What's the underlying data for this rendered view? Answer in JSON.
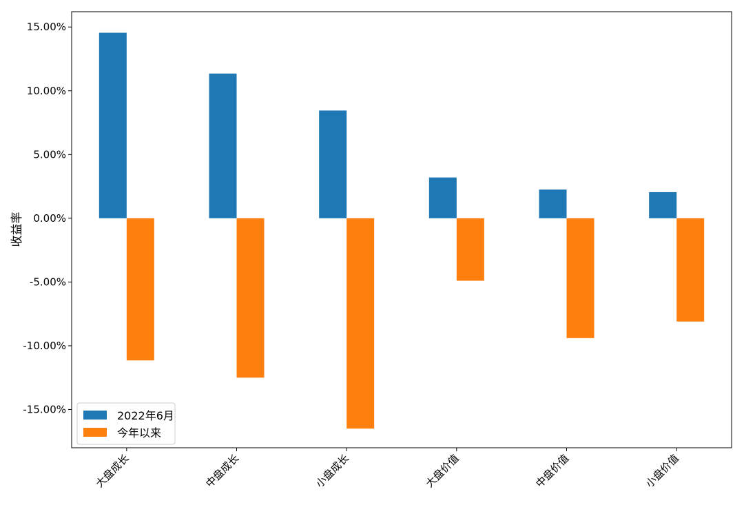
{
  "chart_data": {
    "type": "bar",
    "title": "",
    "xlabel": "",
    "ylabel": "收益率",
    "categories": [
      "大盘成长",
      "中盘成长",
      "小盘成长",
      "大盘价值",
      "中盘价值",
      "小盘价值"
    ],
    "series": [
      {
        "name": "2022年6月",
        "color": "#1f77b4",
        "values": [
          14.55,
          11.35,
          8.45,
          3.2,
          2.25,
          2.05
        ]
      },
      {
        "name": "今年以来",
        "color": "#ff7f0e",
        "values": [
          -11.15,
          -12.5,
          -16.5,
          -4.9,
          -9.4,
          -8.1
        ]
      }
    ],
    "ylim": [
      -18.0,
      16.2
    ],
    "yticks": [
      15,
      10,
      5,
      0,
      -5,
      -10,
      -15
    ],
    "ytick_labels": [
      "15.00%",
      "10.00%",
      "5.00%",
      "0.00%",
      "-5.00%",
      "-10.00%",
      "-15.00%"
    ],
    "grid": false,
    "legend_position": "lower-left",
    "x_tick_rotation": "45"
  }
}
